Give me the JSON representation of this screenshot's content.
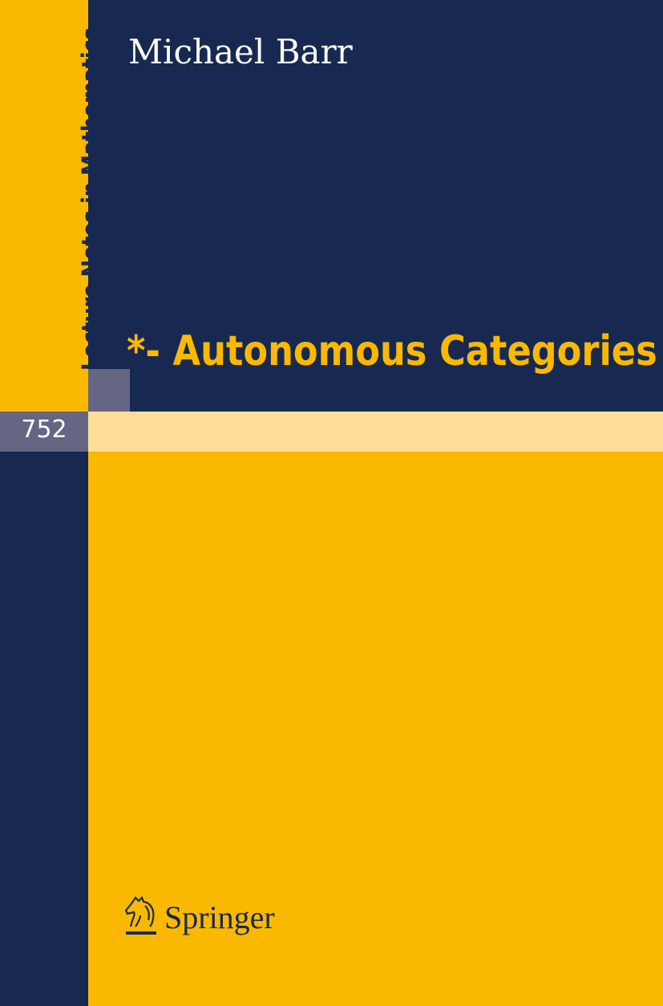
{
  "series": "Lecture Notes in Mathematics",
  "author": "Michael Barr",
  "title": "*- Autonomous Categories",
  "volume": "752",
  "publisher": "Springer",
  "colors": {
    "navy": "#182951",
    "yellow": "#fab900",
    "grey": "#656584",
    "light_yellow": "#fedd97"
  }
}
